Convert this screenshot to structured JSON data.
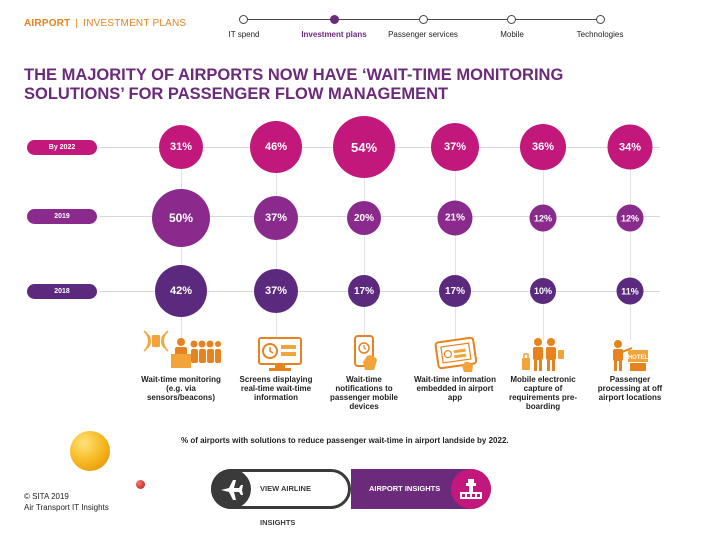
{
  "header": {
    "section": "AIRPORT",
    "sub": "INVESTMENT PLANS"
  },
  "nav": {
    "items": [
      {
        "label": "IT spend",
        "active": false
      },
      {
        "label": "Investment plans",
        "active": true
      },
      {
        "label": "Passenger services",
        "active": false
      },
      {
        "label": "Mobile",
        "active": false
      },
      {
        "label": "Technologies",
        "active": false
      }
    ]
  },
  "title": {
    "line1": "THE MAJORITY OF AIRPORTS NOW HAVE ‘WAIT-TIME MONITORING",
    "line2": "SOLUTIONS’ FOR PASSENGER FLOW MANAGEMENT"
  },
  "rows": [
    {
      "label": "By 2022",
      "color": "#c2187c"
    },
    {
      "label": "2019",
      "color": "#8a2a8c"
    },
    {
      "label": "2018",
      "color": "#5b2a7e"
    }
  ],
  "columns": [
    {
      "label": "Wait-time monitoring (e.g. via sensors/beacons)",
      "icon": "sensor-person-icon",
      "values": [
        "31%",
        "50%",
        "42%"
      ]
    },
    {
      "label": "Screens displaying real-time wait-time information",
      "icon": "screen-display-icon",
      "values": [
        "46%",
        "37%",
        "37%"
      ]
    },
    {
      "label": "Wait-time notifications to passenger mobile devices",
      "icon": "phone-notification-icon",
      "values": [
        "54%",
        "20%",
        "17%"
      ]
    },
    {
      "label": "Wait-time information embedded in airport app",
      "icon": "tablet-app-icon",
      "values": [
        "37%",
        "21%",
        "17%"
      ]
    },
    {
      "label": "Mobile electronic capture of requirements pre-boarding",
      "icon": "passengers-luggage-icon",
      "values": [
        "36%",
        "12%",
        "10%"
      ]
    },
    {
      "label": "Passenger processing at off airport locations",
      "icon": "hotel-checkin-icon",
      "values": [
        "34%",
        "12%",
        "11%"
      ]
    }
  ],
  "footnote": "% of airports with solutions to reduce passenger wait-time in airport landside by 2022.",
  "buttons": {
    "airline": "VIEW AIRLINE INSIGHTS",
    "airport": "AIRPORT INSIGHTS"
  },
  "copyright": {
    "line1": "© SITA 2019",
    "line2": "Air Transport IT Insights"
  },
  "colors": {
    "magenta": "#c2187c",
    "purple": "#8a2a8c",
    "deep_purple": "#5b2a7e",
    "orange": "#e8821e"
  }
}
